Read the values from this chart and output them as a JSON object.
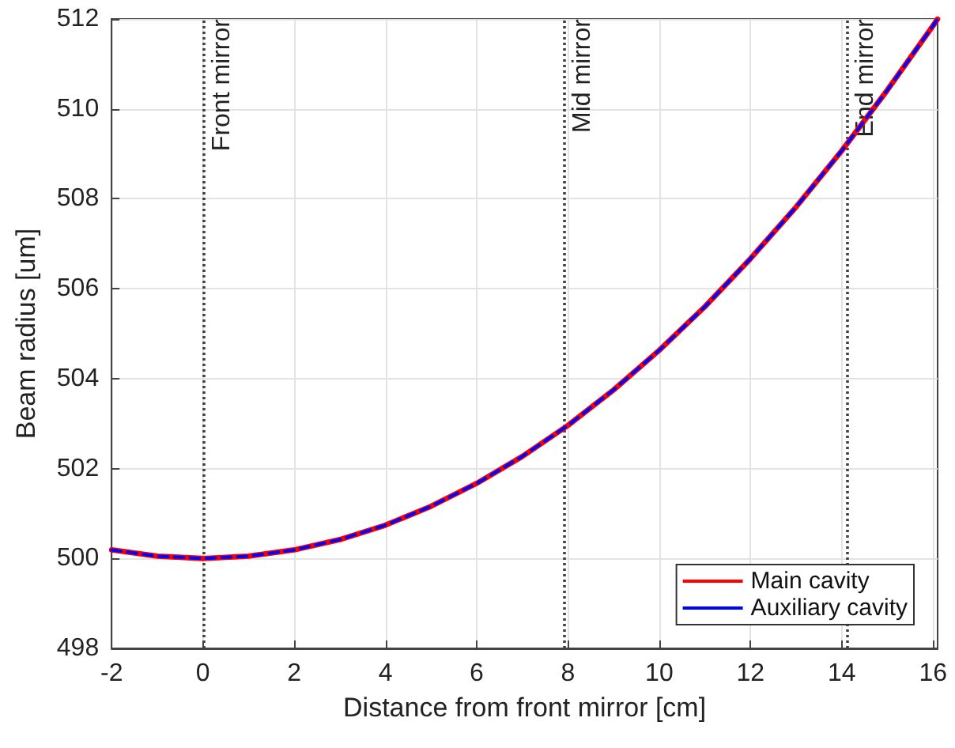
{
  "chart_data": {
    "type": "line",
    "xlabel": "Distance from front mirror [cm]",
    "ylabel": "Beam radius [um]",
    "x": [
      -2,
      -1,
      0,
      1,
      2,
      3,
      4,
      5,
      6,
      7,
      8,
      9,
      10,
      11,
      12,
      13,
      14,
      15,
      16,
      16.1
    ],
    "series": [
      {
        "name": "Main cavity",
        "color": "#ff0000",
        "line_style": "solid",
        "values": [
          500.19,
          500.05,
          500,
          500.05,
          500.19,
          500.42,
          500.74,
          501.16,
          501.67,
          502.27,
          502.96,
          503.75,
          504.63,
          505.6,
          506.67,
          507.82,
          509.07,
          510.42,
          511.85,
          512
        ]
      },
      {
        "name": "Auxiliary cavity",
        "color": "#0000ff",
        "line_style": "dashed",
        "values": [
          500.19,
          500.05,
          500,
          500.05,
          500.19,
          500.42,
          500.74,
          501.16,
          501.67,
          502.27,
          502.96,
          503.75,
          504.63,
          505.6,
          506.67,
          507.82,
          509.07,
          510.42,
          511.85,
          512
        ]
      }
    ],
    "xlim": [
      -2,
      16.1
    ],
    "xticks": [
      -2,
      0,
      2,
      4,
      6,
      8,
      10,
      12,
      14,
      16
    ],
    "ylim": [
      498,
      512
    ],
    "yticks": [
      498,
      500,
      502,
      504,
      506,
      508,
      510,
      512
    ],
    "ref_lines": [
      {
        "axis": "x",
        "value": 0,
        "label": "Front mirror",
        "color": "#404040",
        "line_style": "dotted"
      },
      {
        "axis": "x",
        "value": 7.9,
        "label": "Mid mirror",
        "color": "#404040",
        "line_style": "dotted"
      },
      {
        "axis": "x",
        "value": 14.1,
        "label": "End mirror",
        "color": "#404040",
        "line_style": "dotted"
      }
    ],
    "grid": true,
    "legend": "bottom right",
    "marker": "none"
  }
}
